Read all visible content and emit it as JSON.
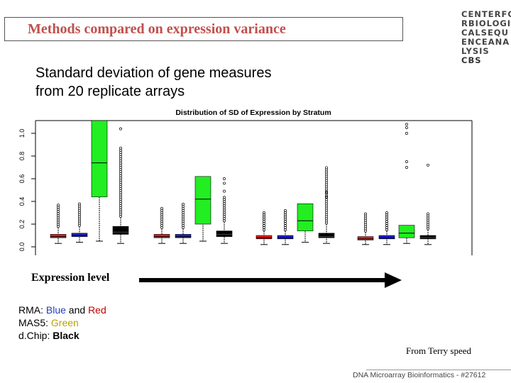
{
  "slide": {
    "title": "Methods compared on expression variance",
    "subtitle_lines": [
      "Standard deviation of gene measures",
      "from 20 replicate arrays"
    ],
    "logo_lines": [
      "CENTERFO",
      "RBIOLOGI",
      "CALSEQU",
      "ENCEANA",
      "LYSIS"
    ],
    "logo_cbs": "CBS",
    "expression_label": "Expression level",
    "legend": {
      "rma_prefix": "RMA: ",
      "rma_blue": "Blue",
      "rma_and": " and ",
      "rma_red": "Red",
      "mas5_prefix": "MAS5: ",
      "mas5_green": "Green",
      "dchip_prefix": "d.Chip: ",
      "dchip_black": "Black"
    },
    "credit": "From Terry speed",
    "footer": "DNA Microarray Bioinformatics - #27612"
  },
  "colors": {
    "title": "#c0504d",
    "red": "#e41a1c",
    "blue": "#1f1fd0",
    "green": "#22ee22",
    "black": "#000000"
  },
  "chart_data": {
    "type": "box",
    "title": "Distribution of SD of Expression by Stratum",
    "ytick_labels": [
      "0.0",
      "0.2",
      "0.4",
      "0.6",
      "0.8",
      "1.0"
    ],
    "yticks": [
      0.0,
      0.2,
      0.4,
      0.6,
      0.8,
      1.0
    ],
    "ylim": [
      0.0,
      1.1
    ],
    "series": [
      {
        "name": "RMA (red)",
        "color": "#e41a1c"
      },
      {
        "name": "RMA (blue)",
        "color": "#1f1fd0"
      },
      {
        "name": "MAS5",
        "color": "#22ee22"
      },
      {
        "name": "dChip",
        "color": "#000000"
      }
    ],
    "strata": [
      {
        "boxes": [
          {
            "series": 0,
            "q1": 0.08,
            "median": 0.09,
            "q3": 0.11,
            "wlo": 0.03,
            "whi": 0.17,
            "out_lo": 0.18,
            "out_hi": 0.38
          },
          {
            "series": 1,
            "q1": 0.09,
            "median": 0.1,
            "q3": 0.12,
            "wlo": 0.04,
            "whi": 0.18,
            "out_lo": 0.19,
            "out_hi": 0.38
          },
          {
            "series": 2,
            "q1": 0.44,
            "median": 0.74,
            "q3": 1.12,
            "wlo": 0.05,
            "whi": 1.12,
            "out_lo": null,
            "out_hi": null
          },
          {
            "series": 3,
            "q1": 0.11,
            "median": 0.13,
            "q3": 0.18,
            "wlo": 0.03,
            "whi": 0.26,
            "out_lo": 0.27,
            "out_hi": 0.88
          }
        ],
        "extra_points": [
          {
            "series": 3,
            "y": 1.04
          }
        ]
      },
      {
        "boxes": [
          {
            "series": 0,
            "q1": 0.08,
            "median": 0.09,
            "q3": 0.11,
            "wlo": 0.03,
            "whi": 0.16,
            "out_lo": 0.17,
            "out_hi": 0.34
          },
          {
            "series": 1,
            "q1": 0.08,
            "median": 0.09,
            "q3": 0.11,
            "wlo": 0.03,
            "whi": 0.16,
            "out_lo": 0.17,
            "out_hi": 0.38
          },
          {
            "series": 2,
            "q1": 0.2,
            "median": 0.42,
            "q3": 0.62,
            "wlo": 0.05,
            "whi": 0.62,
            "out_lo": null,
            "out_hi": null
          },
          {
            "series": 3,
            "q1": 0.09,
            "median": 0.11,
            "q3": 0.14,
            "wlo": 0.03,
            "whi": 0.22,
            "out_lo": 0.23,
            "out_hi": 0.45
          }
        ],
        "extra_points": [
          {
            "series": 3,
            "y": 0.49
          },
          {
            "series": 3,
            "y": 0.56
          },
          {
            "series": 3,
            "y": 0.6
          }
        ]
      },
      {
        "boxes": [
          {
            "series": 0,
            "q1": 0.07,
            "median": 0.08,
            "q3": 0.1,
            "wlo": 0.02,
            "whi": 0.14,
            "out_lo": 0.15,
            "out_hi": 0.3
          },
          {
            "series": 1,
            "q1": 0.07,
            "median": 0.08,
            "q3": 0.1,
            "wlo": 0.02,
            "whi": 0.14,
            "out_lo": 0.15,
            "out_hi": 0.32
          },
          {
            "series": 2,
            "q1": 0.14,
            "median": 0.23,
            "q3": 0.38,
            "wlo": 0.04,
            "whi": 0.38,
            "out_lo": null,
            "out_hi": null
          },
          {
            "series": 3,
            "q1": 0.08,
            "median": 0.09,
            "q3": 0.12,
            "wlo": 0.03,
            "whi": 0.2,
            "out_lo": 0.21,
            "out_hi": 0.7
          }
        ],
        "extra_points": [
          {
            "series": 3,
            "y": 0.44
          },
          {
            "series": 3,
            "y": 0.48
          }
        ]
      },
      {
        "boxes": [
          {
            "series": 0,
            "q1": 0.06,
            "median": 0.07,
            "q3": 0.09,
            "wlo": 0.02,
            "whi": 0.13,
            "out_lo": 0.14,
            "out_hi": 0.3
          },
          {
            "series": 1,
            "q1": 0.07,
            "median": 0.08,
            "q3": 0.1,
            "wlo": 0.02,
            "whi": 0.14,
            "out_lo": 0.15,
            "out_hi": 0.3
          },
          {
            "series": 2,
            "q1": 0.08,
            "median": 0.12,
            "q3": 0.19,
            "wlo": 0.03,
            "whi": 0.19,
            "out_lo": null,
            "out_hi": 0.6
          },
          {
            "series": 3,
            "q1": 0.07,
            "median": 0.08,
            "q3": 0.1,
            "wlo": 0.02,
            "whi": 0.15,
            "out_lo": 0.16,
            "out_hi": 0.3
          }
        ],
        "extra_points": [
          {
            "series": 2,
            "y": 0.7
          },
          {
            "series": 2,
            "y": 0.75
          },
          {
            "series": 2,
            "y": 1.0
          },
          {
            "series": 2,
            "y": 1.05
          },
          {
            "series": 2,
            "y": 1.08
          },
          {
            "series": 3,
            "y": 0.72
          }
        ]
      }
    ],
    "grid": false
  }
}
